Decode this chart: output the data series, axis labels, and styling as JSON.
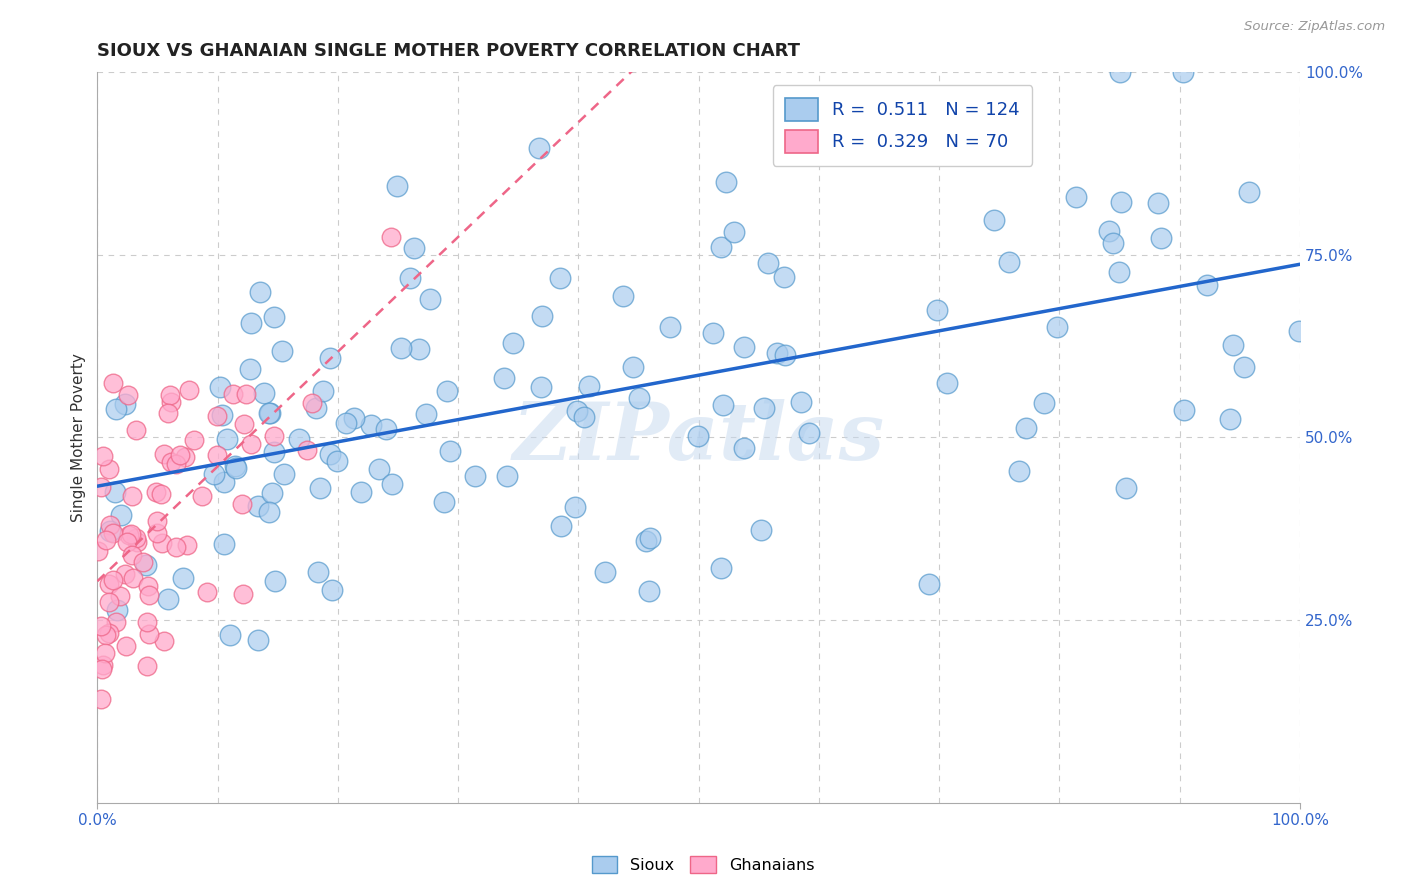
{
  "title": "SIOUX VS GHANAIAN SINGLE MOTHER POVERTY CORRELATION CHART",
  "source": "Source: ZipAtlas.com",
  "ylabel": "Single Mother Poverty",
  "xlim": [
    0.0,
    1.0
  ],
  "ylim": [
    0.0,
    1.0
  ],
  "y_tick_positions": [
    0.25,
    0.5,
    0.75,
    1.0
  ],
  "legend_r_sioux": "0.511",
  "legend_n_sioux": "124",
  "legend_r_ghanaian": "0.329",
  "legend_n_ghanaian": "70",
  "sioux_fill": "#aaccee",
  "sioux_edge": "#5599cc",
  "ghanaian_fill": "#ffaacc",
  "ghanaian_edge": "#ee6688",
  "sioux_line_color": "#2266cc",
  "ghanaian_line_color": "#dd4466",
  "watermark": "ZIPatlas",
  "background_color": "#ffffff",
  "grid_color": "#cccccc",
  "title_color": "#222222",
  "axis_label_color": "#333333",
  "tick_label_color": "#3366cc"
}
